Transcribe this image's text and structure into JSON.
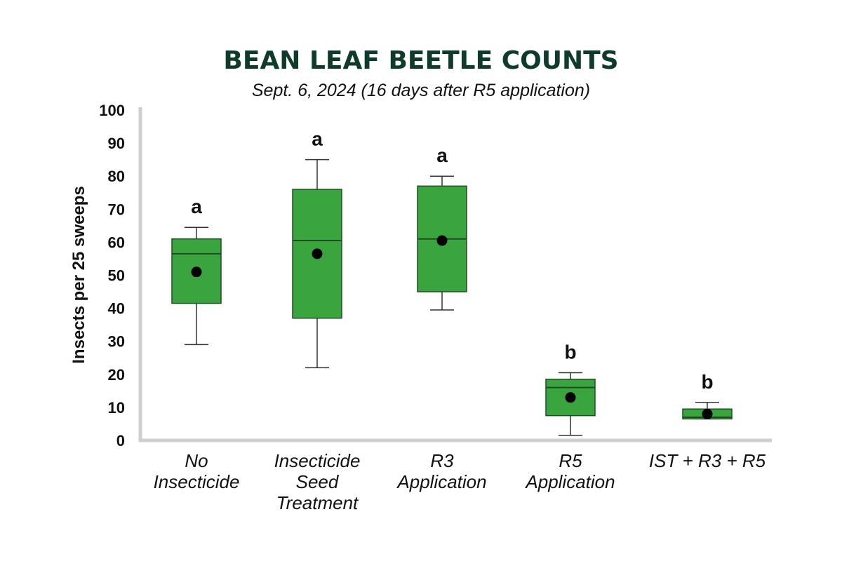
{
  "chart_data": {
    "type": "box",
    "title": "BEAN LEAF BEETLE COUNTS",
    "subtitle": "Sept. 6, 2024 (16 days after R5 application)",
    "ylabel": "Insects per 25 sweeps",
    "xlabel": "",
    "ylim": [
      0,
      100
    ],
    "yticks": [
      "0",
      "10",
      "20",
      "30",
      "40",
      "50",
      "60",
      "70",
      "80",
      "90",
      "100"
    ],
    "grid": false,
    "box_color": "#3aa53f",
    "box_stroke": "#1f4d22",
    "categories": [
      {
        "lines": [
          "No",
          "Insecticide"
        ],
        "min": 29,
        "q1": 41.5,
        "median": 56.5,
        "q3": 61,
        "max": 64.5,
        "mean": 51,
        "group": "a"
      },
      {
        "lines": [
          "Insecticide",
          "Seed",
          "Treatment"
        ],
        "min": 22,
        "q1": 37,
        "median": 60.5,
        "q3": 76,
        "max": 85,
        "mean": 56.5,
        "group": "a"
      },
      {
        "lines": [
          "R3",
          "Application"
        ],
        "min": 39.5,
        "q1": 45,
        "median": 61,
        "q3": 77,
        "max": 80,
        "mean": 60.5,
        "group": "a"
      },
      {
        "lines": [
          "R5",
          "Application"
        ],
        "min": 1.5,
        "q1": 7.5,
        "median": 16,
        "q3": 18.5,
        "max": 20.5,
        "mean": 13,
        "group": "b"
      },
      {
        "lines": [
          "IST + R3 + R5"
        ],
        "min": 6.5,
        "q1": 6.5,
        "median": 7,
        "q3": 9.5,
        "max": 11.5,
        "mean": 8,
        "group": "b"
      }
    ]
  }
}
